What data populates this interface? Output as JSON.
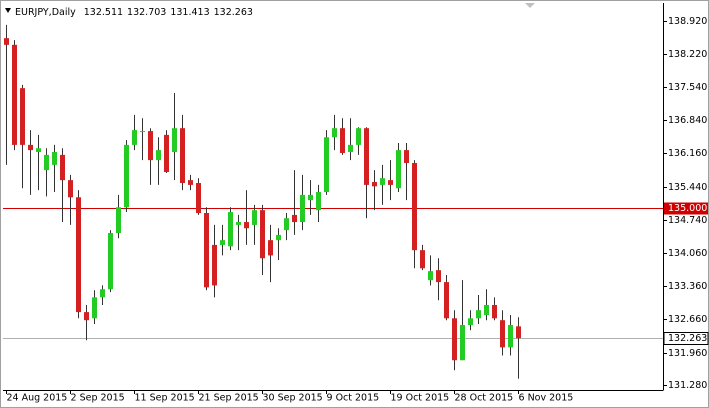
{
  "chart_data": {
    "type": "candlestick",
    "title": "EURJPY,Daily",
    "categories": [
      "24 Aug 2015",
      null,
      null,
      null,
      null,
      null,
      null,
      null,
      "2 Sep 2015",
      null,
      null,
      null,
      null,
      null,
      null,
      null,
      "11 Sep 2015",
      null,
      null,
      null,
      null,
      null,
      null,
      null,
      "21 Sep 2015",
      null,
      null,
      null,
      null,
      null,
      null,
      null,
      "30 Sep 2015",
      null,
      null,
      null,
      null,
      null,
      null,
      null,
      "9 Oct 2015",
      null,
      null,
      null,
      null,
      null,
      null,
      null,
      "19 Oct 2015",
      null,
      null,
      null,
      null,
      null,
      null,
      null,
      "28 Oct 2015",
      null,
      null,
      null,
      null,
      null,
      null,
      null,
      "6 Nov 2015"
    ],
    "open": [
      138.56,
      138.42,
      137.51,
      136.32,
      136.17,
      135.79,
      135.9,
      136.11,
      135.58,
      135.22,
      132.81,
      132.68,
      133.12,
      133.29,
      134.47,
      135.01,
      136.32,
      136.59,
      136.61,
      136.0,
      136.53,
      136.17,
      136.67,
      135.58,
      135.52,
      134.89,
      134.22,
      134.22,
      134.19,
      134.64,
      134.7,
      134.64,
      134.95,
      134.32,
      134.32,
      134.53,
      134.85,
      134.7,
      135.16,
      134.95,
      135.33,
      136.48,
      136.67,
      136.17,
      136.32,
      136.67,
      135.54,
      135.48,
      135.58,
      135.41,
      136.21,
      135.94,
      134.11,
      133.48,
      133.69,
      133.44,
      132.68,
      131.8,
      132.54,
      132.68,
      132.75,
      132.96,
      132.64,
      132.07,
      132.511
    ],
    "high": [
      138.84,
      138.52,
      137.58,
      136.63,
      136.53,
      136.25,
      136.32,
      136.25,
      135.69,
      135.37,
      132.96,
      133.27,
      133.37,
      134.53,
      135.27,
      136.42,
      136.95,
      136.88,
      136.67,
      136.48,
      136.63,
      137.41,
      136.95,
      135.69,
      135.62,
      135.01,
      134.64,
      134.64,
      135.01,
      134.85,
      135.37,
      135.06,
      135.06,
      134.64,
      134.57,
      134.89,
      135.79,
      135.69,
      135.58,
      135.48,
      136.63,
      136.95,
      136.88,
      136.88,
      136.69,
      136.69,
      135.79,
      135.9,
      136.0,
      136.36,
      136.36,
      136.0,
      134.22,
      134.0,
      133.94,
      133.59,
      132.85,
      133.48,
      132.85,
      133.17,
      133.29,
      133.12,
      132.85,
      132.75,
      132.703
    ],
    "low": [
      135.9,
      136.21,
      135.41,
      135.27,
      135.37,
      135.24,
      135.33,
      134.7,
      134.64,
      132.68,
      132.22,
      132.56,
      132.96,
      133.23,
      134.36,
      134.91,
      136.21,
      136.0,
      135.48,
      135.48,
      135.73,
      135.58,
      135.37,
      135.37,
      134.85,
      133.27,
      133.12,
      134.0,
      134.11,
      134.11,
      134.22,
      134.22,
      133.59,
      133.44,
      133.9,
      134.32,
      134.43,
      134.53,
      134.85,
      134.7,
      135.27,
      136.21,
      136.11,
      136.0,
      136.11,
      134.78,
      134.95,
      135.06,
      135.16,
      135.33,
      135.16,
      133.73,
      133.69,
      133.37,
      133.06,
      132.64,
      131.59,
      131.8,
      132.43,
      132.56,
      132.64,
      132.64,
      131.9,
      131.9,
      131.413
    ],
    "close": [
      138.42,
      136.32,
      136.32,
      136.21,
      136.25,
      136.11,
      136.17,
      135.58,
      135.22,
      132.81,
      132.64,
      133.12,
      133.29,
      134.47,
      135.01,
      136.32,
      136.63,
      136.61,
      136.0,
      136.21,
      135.75,
      136.67,
      135.52,
      135.48,
      134.89,
      133.33,
      133.37,
      134.32,
      134.91,
      134.7,
      134.57,
      134.95,
      133.94,
      134.0,
      134.43,
      134.78,
      134.7,
      135.27,
      135.27,
      135.33,
      136.48,
      136.67,
      136.15,
      136.32,
      136.67,
      135.48,
      135.45,
      135.62,
      135.48,
      136.21,
      135.94,
      134.11,
      133.73,
      133.67,
      133.44,
      132.68,
      131.8,
      132.54,
      132.68,
      132.85,
      132.96,
      132.68,
      132.07,
      132.54,
      132.263
    ],
    "up_color": "#22cc22",
    "down_color": "#d42020",
    "ylim": [
      131.175,
      139.256
    ],
    "yticks": [
      {
        "value": 138.92,
        "label": "138.920"
      },
      {
        "value": 138.22,
        "label": "138.220"
      },
      {
        "value": 137.54,
        "label": "137.540"
      },
      {
        "value": 136.84,
        "label": "136.840"
      },
      {
        "value": 136.16,
        "label": "136.160"
      },
      {
        "value": 135.44,
        "label": "135.440"
      },
      {
        "value": 134.74,
        "label": "134.740"
      },
      {
        "value": 134.06,
        "label": "134.060"
      },
      {
        "value": 133.36,
        "label": "133.360"
      },
      {
        "value": 132.66,
        "label": "132.660"
      },
      {
        "value": 131.96,
        "label": "131.960"
      },
      {
        "value": 131.28,
        "label": "131.280"
      }
    ],
    "levels": [
      {
        "value": 135,
        "label": "135.000",
        "color": "#d00000"
      }
    ]
  }
}
